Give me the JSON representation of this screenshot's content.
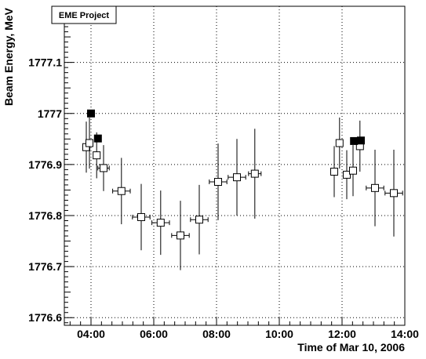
{
  "chart_data": {
    "type": "scatter",
    "title_box": "EME Project",
    "xlabel": "Time of Mar 10, 2006",
    "ylabel": "Beam Energy, MeV",
    "x_unit": "hours",
    "xlim": [
      3.15,
      14.0
    ],
    "ylim": [
      1776.585,
      1777.21
    ],
    "x_ticks": [
      {
        "value": 4,
        "label": "04:00"
      },
      {
        "value": 6,
        "label": "06:00"
      },
      {
        "value": 8,
        "label": "08:00"
      },
      {
        "value": 10,
        "label": "10:00"
      },
      {
        "value": 12,
        "label": "12:00"
      },
      {
        "value": 14,
        "label": "14:00"
      }
    ],
    "y_ticks": [
      {
        "value": 1776.6,
        "label": "1776.6"
      },
      {
        "value": 1776.7,
        "label": "1776.7"
      },
      {
        "value": 1776.8,
        "label": "1776.8"
      },
      {
        "value": 1776.9,
        "label": "1776.9"
      },
      {
        "value": 1777.0,
        "label": "1777"
      },
      {
        "value": 1777.1,
        "label": "1777.1"
      }
    ],
    "grid": true,
    "series": [
      {
        "marker": "open-square",
        "color": "#000000",
        "points": [
          {
            "x": 3.85,
            "y": 1776.934,
            "xerr": 0.06,
            "yerr": 0.05
          },
          {
            "x": 3.95,
            "y": 1776.942,
            "xerr": 0.06,
            "yerr": 0.05
          },
          {
            "x": 4.18,
            "y": 1776.918,
            "xerr": 0.08,
            "yerr": 0.045
          },
          {
            "x": 4.4,
            "y": 1776.893,
            "xerr": 0.18,
            "yerr": 0.045
          },
          {
            "x": 4.97,
            "y": 1776.848,
            "xerr": 0.28,
            "yerr": 0.065
          },
          {
            "x": 5.6,
            "y": 1776.797,
            "xerr": 0.28,
            "yerr": 0.065
          },
          {
            "x": 6.22,
            "y": 1776.786,
            "xerr": 0.28,
            "yerr": 0.063
          },
          {
            "x": 6.85,
            "y": 1776.761,
            "xerr": 0.28,
            "yerr": 0.068
          },
          {
            "x": 7.45,
            "y": 1776.792,
            "xerr": 0.28,
            "yerr": 0.068
          },
          {
            "x": 8.05,
            "y": 1776.866,
            "xerr": 0.28,
            "yerr": 0.075
          },
          {
            "x": 8.65,
            "y": 1776.875,
            "xerr": 0.28,
            "yerr": 0.075
          },
          {
            "x": 9.22,
            "y": 1776.882,
            "xerr": 0.2,
            "yerr": 0.088
          },
          {
            "x": 11.75,
            "y": 1776.886,
            "xerr": 0.08,
            "yerr": 0.05
          },
          {
            "x": 11.92,
            "y": 1776.942,
            "xerr": 0.08,
            "yerr": 0.05
          },
          {
            "x": 12.15,
            "y": 1776.88,
            "xerr": 0.08,
            "yerr": 0.048
          },
          {
            "x": 12.35,
            "y": 1776.888,
            "xerr": 0.08,
            "yerr": 0.05
          },
          {
            "x": 12.57,
            "y": 1776.936,
            "xerr": 0.08,
            "yerr": 0.05
          },
          {
            "x": 13.05,
            "y": 1776.854,
            "xerr": 0.28,
            "yerr": 0.075
          },
          {
            "x": 13.65,
            "y": 1776.844,
            "xerr": 0.28,
            "yerr": 0.085
          }
        ]
      },
      {
        "marker": "filled-square",
        "color": "#000000",
        "points": [
          {
            "x": 4.0,
            "y": 1777.0
          },
          {
            "x": 4.22,
            "y": 1776.951
          },
          {
            "x": 12.38,
            "y": 1776.946
          },
          {
            "x": 12.6,
            "y": 1776.947
          }
        ]
      }
    ]
  }
}
